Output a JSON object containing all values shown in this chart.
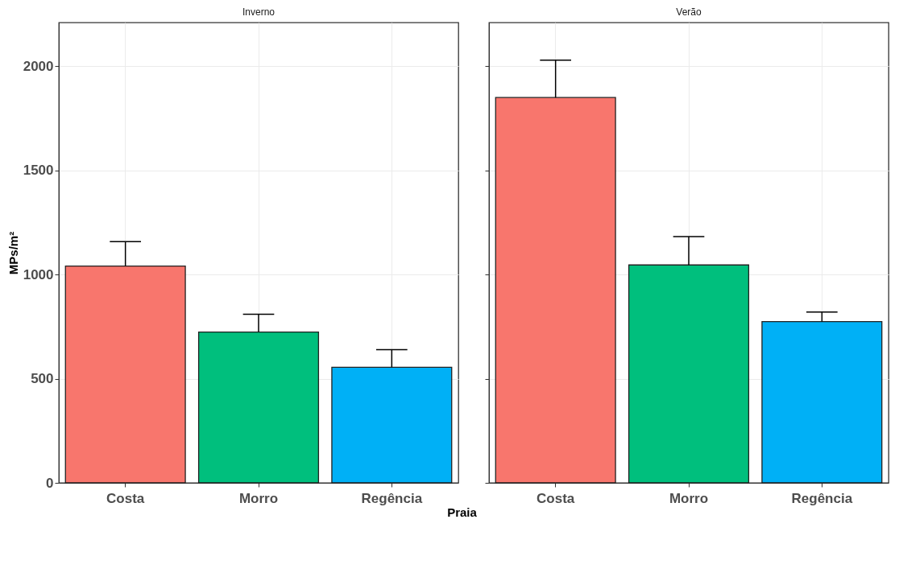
{
  "chart_data": [
    {
      "type": "bar",
      "title": "Inverno",
      "xlabel": "Praia",
      "ylabel": "MPs/m²",
      "categories": [
        "Costa",
        "Morro",
        "Regência"
      ],
      "values": [
        1041,
        724,
        555
      ],
      "colors": [
        "#f8766d",
        "#00bf7d",
        "#00b0f6"
      ],
      "errors": [
        [
          1041,
          1158
        ],
        [
          724,
          809
        ],
        [
          555,
          639
        ]
      ],
      "ylim": [
        0,
        2210
      ],
      "yticks": [
        0,
        500,
        1000,
        1500,
        2000
      ],
      "grid": true,
      "legend": false
    },
    {
      "type": "bar",
      "title": "Verão",
      "categories": [
        "Costa",
        "Morro",
        "Regência"
      ],
      "values": [
        1850,
        1046,
        774
      ],
      "colors": [
        "#f8766d",
        "#00bf7d",
        "#00b0f6"
      ],
      "errors": [
        [
          1850,
          2029
        ],
        [
          1046,
          1182
        ],
        [
          774,
          820
        ]
      ],
      "ylim": [
        0,
        2210
      ],
      "yticks": [
        0,
        500,
        1000,
        1500,
        2000
      ],
      "grid": true,
      "legend": false,
      "tick_labels": "x"
    }
  ]
}
